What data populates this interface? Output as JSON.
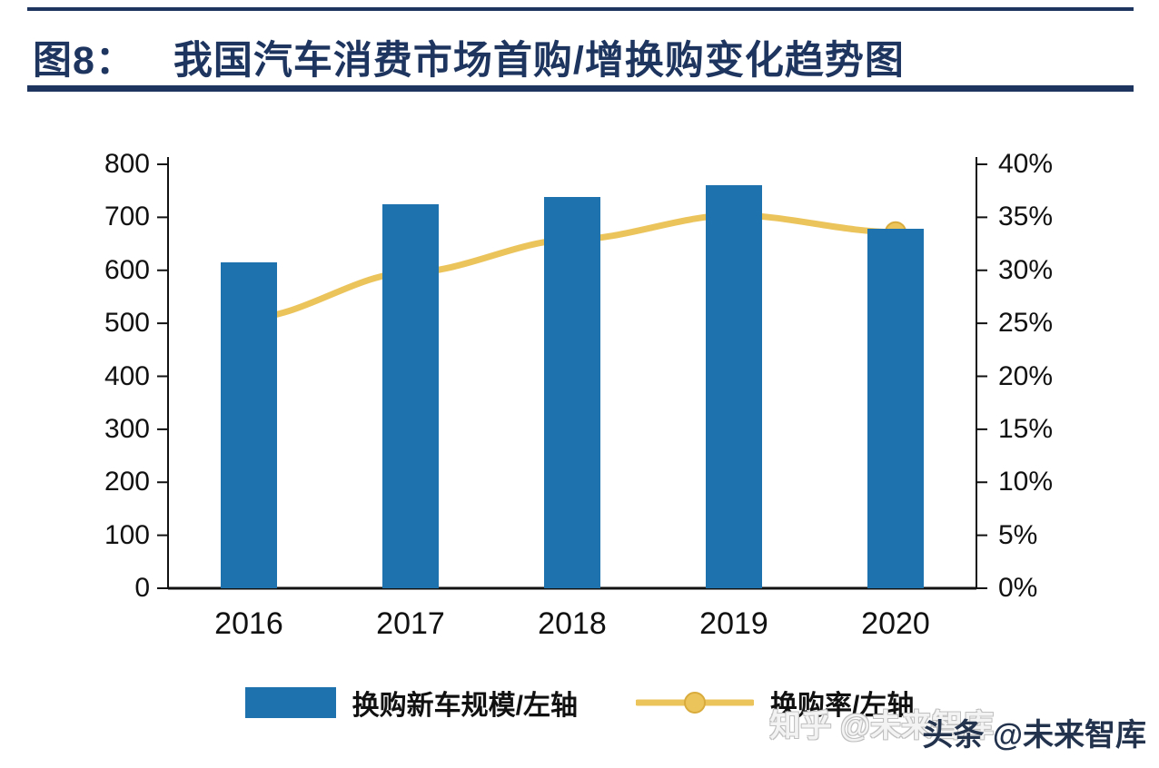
{
  "header": {
    "fig_label": "图8：",
    "title": "我国汽车消费市场首购/增换购变化趋势图",
    "accent_color": "#1e3560"
  },
  "chart_data": {
    "type": "bar+line",
    "title": "我国汽车消费市场首购/增换购变化趋势图",
    "categories": [
      "2016",
      "2017",
      "2018",
      "2019",
      "2020"
    ],
    "series": [
      {
        "name": "换购新车规模/左轴",
        "type": "bar",
        "axis": "left",
        "color": "#1e73ae",
        "values": [
          615,
          725,
          738,
          760,
          678
        ]
      },
      {
        "name": "换购率/左轴",
        "type": "line",
        "axis": "right",
        "color": "#ecc45c",
        "marker_stroke": "#d8ab3c",
        "values": [
          25.5,
          29.8,
          32.9,
          35.2,
          33.6
        ]
      }
    ],
    "left_axis": {
      "min": 0,
      "max": 800,
      "step": 100,
      "suffix": ""
    },
    "right_axis": {
      "min": 0,
      "max": 40,
      "step": 5,
      "suffix": "%"
    },
    "grid": false,
    "legend_position": "bottom"
  },
  "watermark": {
    "front": "头条 @未来智库",
    "back": "知乎 @未来智库"
  }
}
